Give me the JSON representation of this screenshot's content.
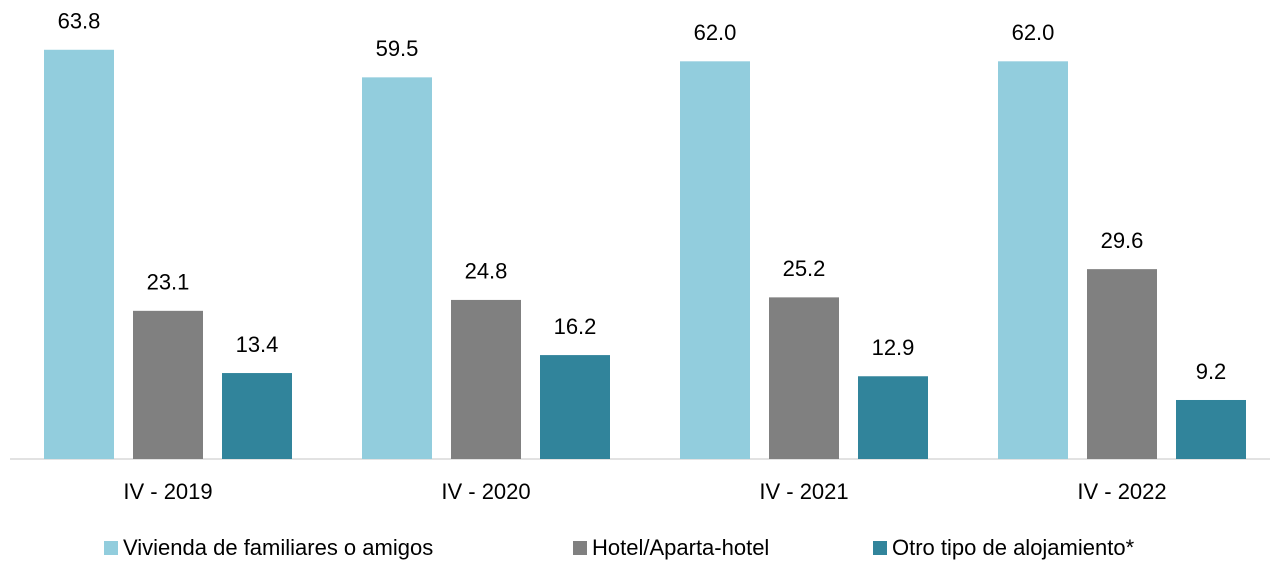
{
  "chart_data": {
    "type": "bar",
    "categories": [
      "IV - 2019",
      "IV - 2020",
      "IV - 2021",
      "IV - 2022"
    ],
    "series": [
      {
        "name": "Vivienda de familiares o amigos",
        "color": "#92cddd",
        "values": [
          63.8,
          59.5,
          62.0,
          62.0
        ],
        "value_labels": [
          "63.8",
          "59.5",
          "62.0",
          "62.0"
        ]
      },
      {
        "name": "Hotel/Aparta-hotel",
        "color": "#808080",
        "values": [
          23.1,
          24.8,
          25.2,
          29.6
        ],
        "value_labels": [
          "23.1",
          "24.8",
          "25.2",
          "29.6"
        ]
      },
      {
        "name": "Otro tipo de alojamiento*",
        "color": "#31849b",
        "values": [
          13.4,
          16.2,
          12.9,
          9.2
        ],
        "value_labels": [
          "13.4",
          "16.2",
          "12.9",
          "9.2"
        ]
      }
    ],
    "ylim": [
      0,
      70
    ],
    "legend": "bottom"
  }
}
